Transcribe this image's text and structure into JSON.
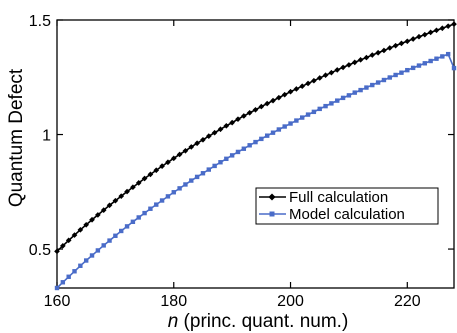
{
  "chart_data": {
    "type": "line",
    "title": "",
    "xlabel_var": "n",
    "xlabel_rest": " (princ. quant. num.)",
    "ylabel": "Quantum Defect",
    "xlim": [
      160,
      228
    ],
    "ylim": [
      0.33,
      1.5
    ],
    "xticks": [
      160,
      180,
      200,
      220
    ],
    "yticks": [
      0.5,
      1,
      1.5
    ],
    "ytick_labels": [
      "0.5",
      "1",
      "1.5"
    ],
    "grid": false,
    "legend_position": "lower-right",
    "x": [
      160,
      161,
      162,
      163,
      164,
      165,
      166,
      167,
      168,
      169,
      170,
      171,
      172,
      173,
      174,
      175,
      176,
      177,
      178,
      179,
      180,
      181,
      182,
      183,
      184,
      185,
      186,
      187,
      188,
      189,
      190,
      191,
      192,
      193,
      194,
      195,
      196,
      197,
      198,
      199,
      200,
      201,
      202,
      203,
      204,
      205,
      206,
      207,
      208,
      209,
      210,
      211,
      212,
      213,
      214,
      215,
      216,
      217,
      218,
      219,
      220,
      221,
      222,
      223,
      224,
      225,
      226,
      227,
      228
    ],
    "series": [
      {
        "name": "Full calculation",
        "color": "#000000",
        "marker": "diamond",
        "values": [
          0.49,
          0.514,
          0.538,
          0.561,
          0.584,
          0.606,
          0.628,
          0.649,
          0.67,
          0.691,
          0.711,
          0.731,
          0.751,
          0.77,
          0.789,
          0.808,
          0.826,
          0.844,
          0.862,
          0.879,
          0.896,
          0.913,
          0.929,
          0.946,
          0.962,
          0.977,
          0.993,
          1.008,
          1.023,
          1.038,
          1.052,
          1.067,
          1.081,
          1.095,
          1.108,
          1.122,
          1.135,
          1.148,
          1.161,
          1.174,
          1.187,
          1.199,
          1.211,
          1.223,
          1.235,
          1.247,
          1.259,
          1.27,
          1.282,
          1.293,
          1.304,
          1.315,
          1.326,
          1.336,
          1.347,
          1.357,
          1.367,
          1.378,
          1.388,
          1.398,
          1.407,
          1.417,
          1.427,
          1.436,
          1.446,
          1.455,
          1.464,
          1.473,
          1.482
        ]
      },
      {
        "name": "Model calculation",
        "color": "#4a6cc8",
        "marker": "square",
        "values": [
          0.33,
          0.355,
          0.379,
          0.403,
          0.427,
          0.45,
          0.472,
          0.494,
          0.516,
          0.537,
          0.558,
          0.579,
          0.599,
          0.619,
          0.638,
          0.657,
          0.676,
          0.694,
          0.712,
          0.73,
          0.748,
          0.765,
          0.782,
          0.799,
          0.815,
          0.831,
          0.847,
          0.863,
          0.879,
          0.894,
          0.909,
          0.924,
          0.938,
          0.953,
          0.967,
          0.981,
          0.995,
          1.008,
          1.022,
          1.035,
          1.048,
          1.061,
          1.074,
          1.087,
          1.099,
          1.112,
          1.124,
          1.136,
          1.148,
          1.16,
          1.171,
          1.183,
          1.194,
          1.205,
          1.216,
          1.227,
          1.238,
          1.249,
          1.26,
          1.27,
          1.281,
          1.291,
          1.301,
          1.311,
          1.321,
          1.331,
          1.341,
          1.351,
          1.29
        ]
      }
    ]
  }
}
